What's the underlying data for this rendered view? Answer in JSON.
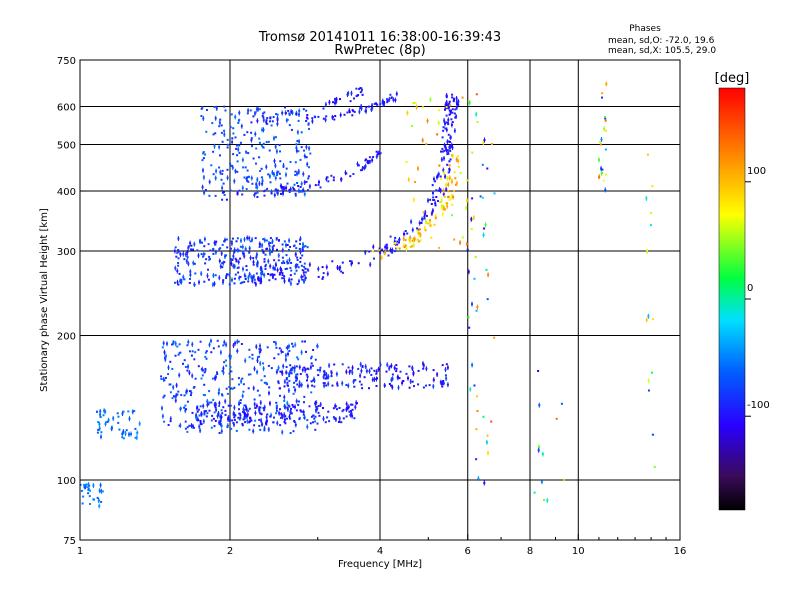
{
  "chart_data": {
    "type": "scatter",
    "title": "Tromsø 20141011 16:38:00-16:39:43",
    "subtitle": "RwPretec (8p)",
    "xlabel": "Frequency [MHz]",
    "ylabel": "Stationary phase Virtual Height [km]",
    "x_scale": "log",
    "y_scale": "log",
    "xlim": [
      1,
      16
    ],
    "ylim": [
      75,
      750
    ],
    "x_ticks": [
      1,
      2,
      4,
      6,
      8,
      10,
      16
    ],
    "x_tick_labels": [
      "1",
      "2",
      "4",
      "6",
      "8",
      "10",
      "16"
    ],
    "y_ticks": [
      75,
      100,
      200,
      300,
      400,
      500,
      600,
      750
    ],
    "y_tick_labels": [
      "75",
      "100",
      "200",
      "300",
      "400",
      "500",
      "600",
      "750"
    ],
    "grid": true,
    "phase_stats": {
      "heading": "Phases",
      "line_o": "mean, sd,O: -72.0, 19.6",
      "line_x": "mean, sd,X: 105.5, 29.0"
    },
    "colorbar": {
      "label": "[deg]",
      "range": [
        -180,
        180
      ],
      "ticks": [
        100,
        0,
        -100
      ],
      "tick_labels": [
        "100",
        "0",
        "-100"
      ]
    },
    "traces": [
      {
        "kind": "dense",
        "x": [
          1.55,
          2.9
        ],
        "h": [
          255,
          320
        ],
        "phase": [
          -105,
          -60
        ],
        "n": 320
      },
      {
        "kind": "curve",
        "pts": [
          [
            2.2,
            262
          ],
          [
            3.0,
            270
          ],
          [
            3.6,
            285
          ],
          [
            4.2,
            305
          ],
          [
            4.8,
            340
          ],
          [
            5.2,
            390
          ],
          [
            5.4,
            450
          ],
          [
            5.5,
            520
          ],
          [
            5.55,
            590
          ],
          [
            5.6,
            630
          ]
        ],
        "phase": [
          -110,
          -85
        ],
        "n": 200,
        "jit": 0.03
      },
      {
        "kind": "curve",
        "pts": [
          [
            3.9,
            295
          ],
          [
            4.5,
            310
          ],
          [
            5.0,
            335
          ],
          [
            5.4,
            370
          ],
          [
            5.6,
            420
          ],
          [
            5.7,
            480
          ]
        ],
        "phase": [
          60,
          130
        ],
        "n": 90,
        "jit": 0.025
      },
      {
        "kind": "dense",
        "x": [
          1.75,
          2.9
        ],
        "h": [
          390,
          600
        ],
        "phase": [
          -90,
          -55
        ],
        "n": 260
      },
      {
        "kind": "curve",
        "pts": [
          [
            1.9,
            390
          ],
          [
            2.5,
            400
          ],
          [
            3.0,
            415
          ],
          [
            3.6,
            440
          ],
          [
            4.0,
            480
          ]
        ],
        "phase": [
          -110,
          -85
        ],
        "n": 70,
        "jit": 0.02
      },
      {
        "kind": "curve",
        "pts": [
          [
            2.8,
            560
          ],
          [
            3.4,
            575
          ],
          [
            3.9,
            600
          ],
          [
            4.3,
            630
          ]
        ],
        "phase": [
          -110,
          -80
        ],
        "n": 60,
        "jit": 0.015
      },
      {
        "kind": "curve",
        "pts": [
          [
            2.2,
            560
          ],
          [
            2.8,
            585
          ],
          [
            3.4,
            625
          ],
          [
            3.7,
            650
          ]
        ],
        "phase": [
          -110,
          -85
        ],
        "n": 40,
        "jit": 0.02
      },
      {
        "kind": "dense",
        "x": [
          1.45,
          3.0
        ],
        "h": [
          125,
          195
        ],
        "phase": [
          -100,
          -50
        ],
        "n": 380
      },
      {
        "kind": "dense",
        "x": [
          1.7,
          3.6
        ],
        "h": [
          130,
          145
        ],
        "phase": [
          -110,
          -80
        ],
        "n": 160
      },
      {
        "kind": "dense",
        "x": [
          2.5,
          5.5
        ],
        "h": [
          155,
          175
        ],
        "phase": [
          -115,
          -75
        ],
        "n": 170
      },
      {
        "kind": "dense",
        "x": [
          1.08,
          1.32
        ],
        "h": [
          122,
          140
        ],
        "phase": [
          -70,
          -45
        ],
        "n": 45
      },
      {
        "kind": "dense",
        "x": [
          1.0,
          1.12
        ],
        "h": [
          88,
          98
        ],
        "phase": [
          -70,
          -40
        ],
        "n": 28
      },
      {
        "kind": "dense",
        "x": [
          4.5,
          6.2
        ],
        "h": [
          300,
          630
        ],
        "phase": [
          40,
          140
        ],
        "n": 45
      },
      {
        "kind": "dense",
        "x": [
          6.0,
          6.8
        ],
        "h": [
          95,
          650
        ],
        "phase": [
          -130,
          150
        ],
        "n": 45
      },
      {
        "kind": "dense",
        "x": [
          8.0,
          9.5
        ],
        "h": [
          85,
          170
        ],
        "phase": [
          -140,
          150
        ],
        "n": 12
      },
      {
        "kind": "dense",
        "x": [
          11.0,
          11.4
        ],
        "h": [
          400,
          680
        ],
        "phase": [
          -90,
          150
        ],
        "n": 22
      },
      {
        "kind": "dense",
        "x": [
          13.7,
          14.3
        ],
        "h": [
          90,
          530
        ],
        "phase": [
          -90,
          130
        ],
        "n": 14
      }
    ]
  }
}
